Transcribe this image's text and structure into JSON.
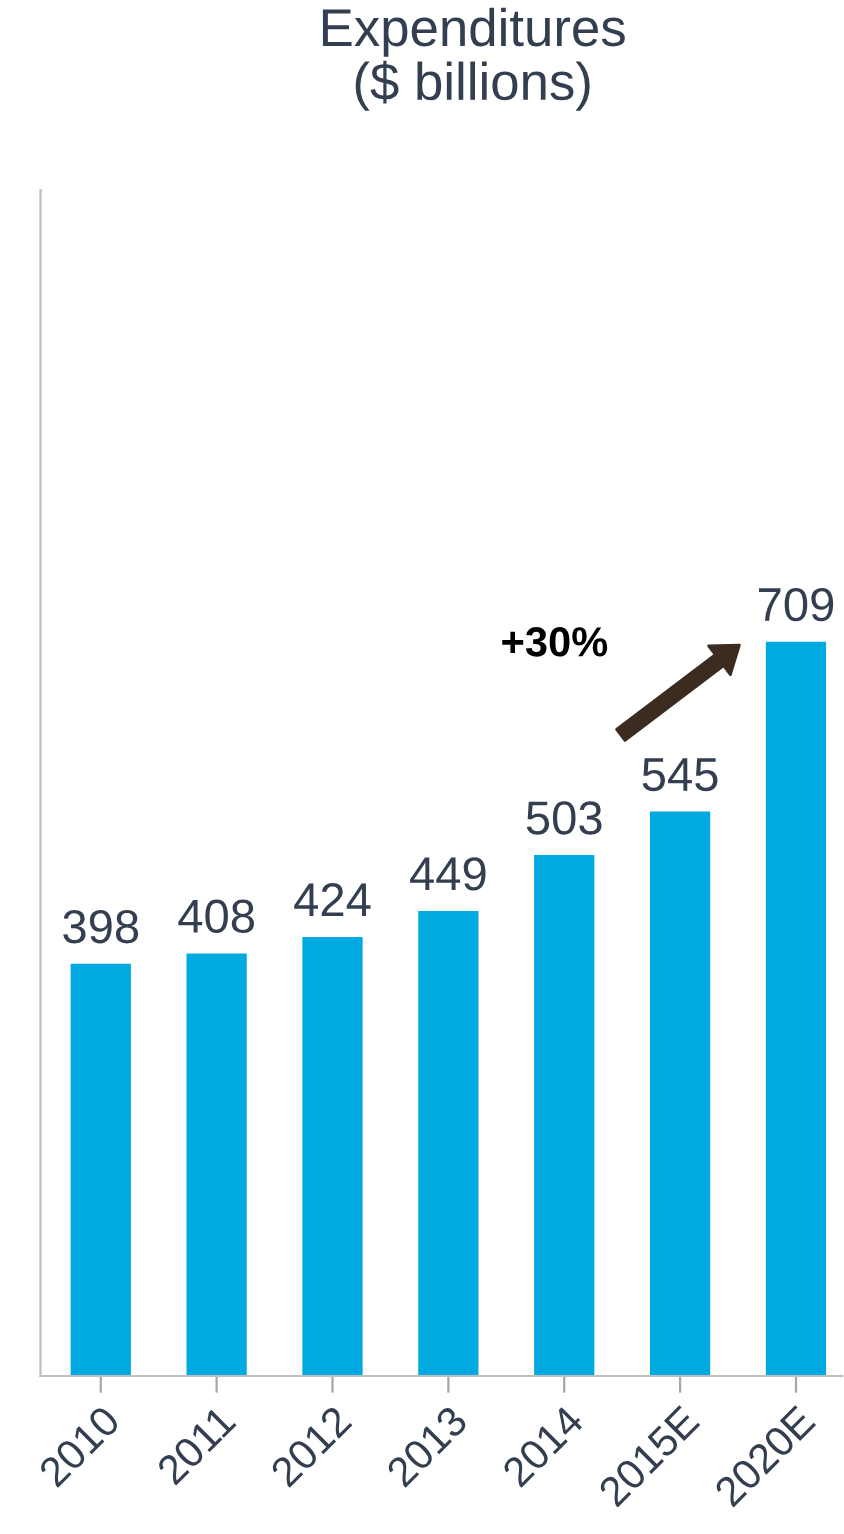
{
  "chart_data": {
    "type": "bar",
    "title": "Expenditures\n($ billions)",
    "categories": [
      "2010",
      "2011",
      "2012",
      "2013",
      "2014",
      "2015E",
      "2020E"
    ],
    "values": [
      398,
      408,
      424,
      449,
      503,
      545,
      709
    ],
    "color": "#00a9e0",
    "data_labels": true,
    "grid": false,
    "legend": false,
    "annotations": [
      "+30%"
    ]
  }
}
